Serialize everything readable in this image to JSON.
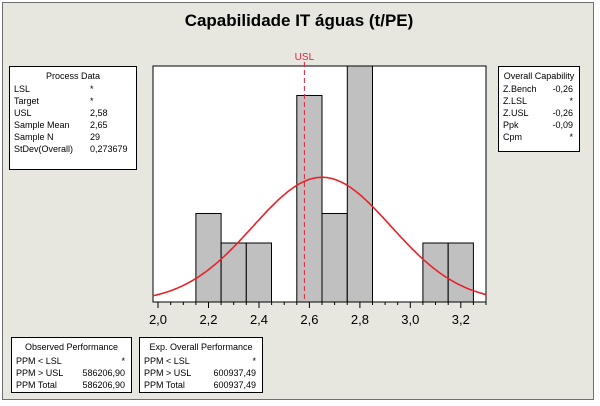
{
  "title": "Capabilidade IT águas (t/PE)",
  "process_data": {
    "heading": "Process Data",
    "rows": [
      {
        "label": "LSL",
        "value": "*"
      },
      {
        "label": "Target",
        "value": "*"
      },
      {
        "label": "USL",
        "value": "2,58"
      },
      {
        "label": "Sample Mean",
        "value": "2,65"
      },
      {
        "label": "Sample N",
        "value": "29"
      },
      {
        "label": "StDev(Overall)",
        "value": "0,273679"
      }
    ]
  },
  "overall_capability": {
    "heading": "Overall Capability",
    "rows": [
      {
        "label": "Z.Bench",
        "value": "-0,26"
      },
      {
        "label": "Z.LSL",
        "value": "*"
      },
      {
        "label": "Z.USL",
        "value": "-0,26"
      },
      {
        "label": "Ppk",
        "value": "-0,09"
      },
      {
        "label": "Cpm",
        "value": "*"
      }
    ]
  },
  "observed_performance": {
    "heading": "Observed Performance",
    "rows": [
      {
        "label": "PPM < LSL",
        "value": "*"
      },
      {
        "label": "PPM > USL",
        "value": "586206,90"
      },
      {
        "label": "PPM Total",
        "value": "586206,90"
      }
    ]
  },
  "expected_performance": {
    "heading": "Exp. Overall Performance",
    "rows": [
      {
        "label": "PPM < LSL",
        "value": "*"
      },
      {
        "label": "PPM > USL",
        "value": "600937,49"
      },
      {
        "label": "PPM Total",
        "value": "600937,49"
      }
    ]
  },
  "chart_data": {
    "type": "bar",
    "subtype": "histogram",
    "title": "Capabilidade IT águas (t/PE)",
    "xlabel": "",
    "ylabel": "",
    "xlim": [
      1.98,
      3.3
    ],
    "ylim": [
      0,
      8
    ],
    "tick_values": [
      2.0,
      2.2,
      2.4,
      2.6,
      2.8,
      3.0,
      3.2
    ],
    "tick_labels": [
      "2,0",
      "2,2",
      "2,4",
      "2,6",
      "2,8",
      "3,0",
      "3,2"
    ],
    "bins": [
      {
        "x0": 2.15,
        "x1": 2.25,
        "count": 3
      },
      {
        "x0": 2.25,
        "x1": 2.35,
        "count": 2
      },
      {
        "x0": 2.35,
        "x1": 2.45,
        "count": 2
      },
      {
        "x0": 2.55,
        "x1": 2.65,
        "count": 7
      },
      {
        "x0": 2.65,
        "x1": 2.75,
        "count": 3
      },
      {
        "x0": 2.75,
        "x1": 2.85,
        "count": 8
      },
      {
        "x0": 3.05,
        "x1": 3.15,
        "count": 2
      },
      {
        "x0": 3.15,
        "x1": 3.25,
        "count": 2
      }
    ],
    "normal_curve": {
      "mean": 2.65,
      "stdev": 0.273679,
      "n": 29
    },
    "usl": {
      "label": "USL",
      "value": 2.58
    },
    "colors": {
      "bars": "#c0c0c0",
      "bar_edge": "#000000",
      "curve": "#e8222a",
      "usl": "#d7263d"
    },
    "grid": false,
    "legend": "none"
  }
}
